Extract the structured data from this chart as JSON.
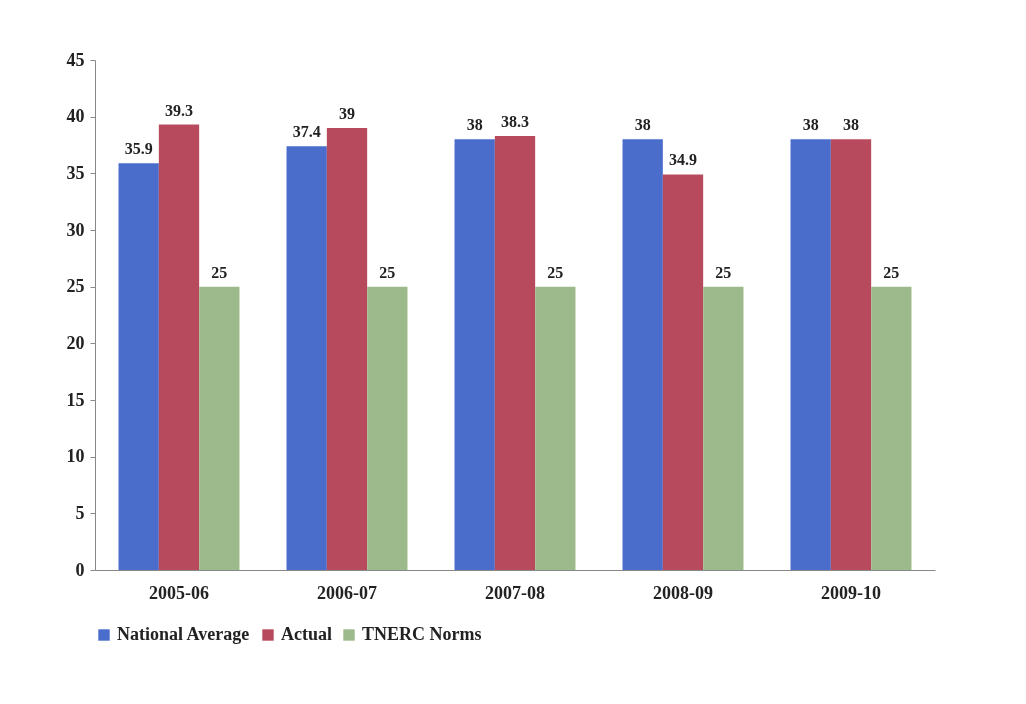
{
  "chart_data": {
    "type": "bar",
    "categories": [
      "2005-06",
      "2006-07",
      "2007-08",
      "2008-09",
      "2009-10"
    ],
    "series": [
      {
        "name": "National Average",
        "color": "#4a6ccb",
        "values": [
          35.9,
          37.4,
          38,
          38,
          38
        ]
      },
      {
        "name": "Actual",
        "color": "#b84a5e",
        "values": [
          39.3,
          39,
          38.3,
          34.9,
          38
        ]
      },
      {
        "name": "TNERC Norms",
        "color": "#9dba8c",
        "values": [
          25,
          25,
          25,
          25,
          25
        ]
      }
    ],
    "ylim": [
      0,
      45
    ],
    "yticks": [
      0,
      5,
      10,
      15,
      20,
      25,
      30,
      35,
      40,
      45
    ],
    "grid": false,
    "legend": "bottom",
    "data_labels": true
  }
}
